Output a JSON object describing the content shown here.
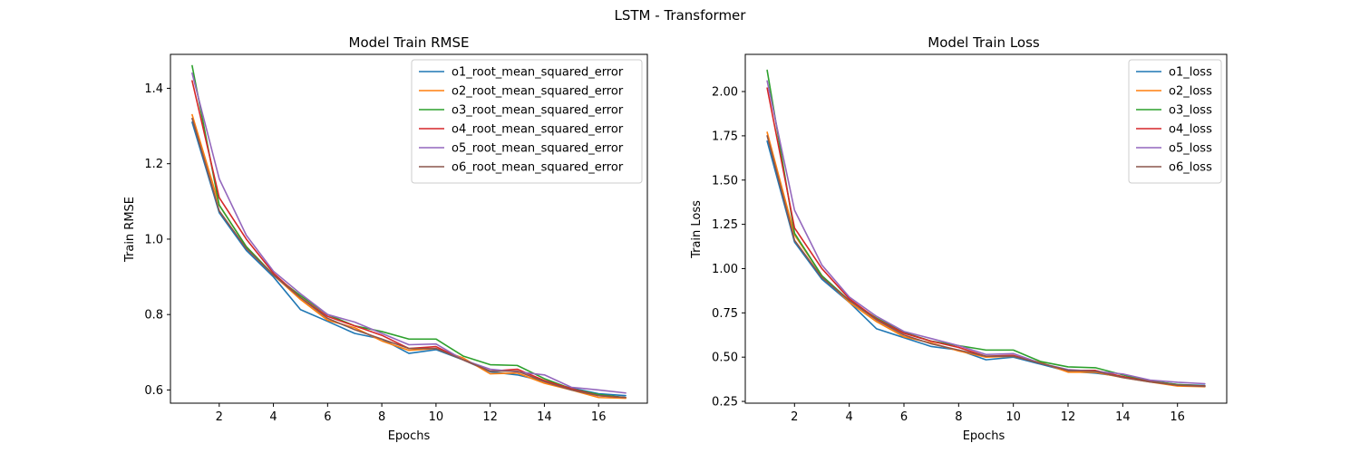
{
  "figure": {
    "suptitle": "LSTM - Transformer"
  },
  "chart_data": [
    {
      "type": "line",
      "title": "Model Train RMSE",
      "xlabel": "Epochs",
      "ylabel": "Train RMSE",
      "xlim": [
        0.2,
        17.8
      ],
      "ylim": [
        0.565,
        1.49
      ],
      "xticks": [
        2,
        4,
        6,
        8,
        10,
        12,
        14,
        16
      ],
      "yticks": [
        0.6,
        0.8,
        1.0,
        1.2,
        1.4
      ],
      "ytick_labels": [
        "0.6",
        "0.8",
        "1.0",
        "1.2",
        "1.4"
      ],
      "grid": false,
      "legend_position": "top-right",
      "x": [
        1,
        2,
        3,
        4,
        5,
        6,
        7,
        8,
        9,
        10,
        11,
        12,
        13,
        14,
        15,
        16,
        17
      ],
      "series": [
        {
          "name": "o1_root_mean_squared_error",
          "color": "#1f77b4",
          "values": [
            1.31,
            1.07,
            0.97,
            0.9,
            0.813,
            0.782,
            0.75,
            0.735,
            0.697,
            0.707,
            0.68,
            0.648,
            0.64,
            0.623,
            0.605,
            0.59,
            0.585
          ]
        },
        {
          "name": "o2_root_mean_squared_error",
          "color": "#ff7f0e",
          "values": [
            1.33,
            1.09,
            0.98,
            0.905,
            0.84,
            0.785,
            0.765,
            0.73,
            0.705,
            0.71,
            0.685,
            0.643,
            0.645,
            0.618,
            0.6,
            0.58,
            0.578
          ]
        },
        {
          "name": "o3_root_mean_squared_error",
          "color": "#2ca02c",
          "values": [
            1.46,
            1.09,
            0.98,
            0.905,
            0.85,
            0.8,
            0.77,
            0.755,
            0.735,
            0.735,
            0.69,
            0.667,
            0.665,
            0.63,
            0.603,
            0.588,
            0.58
          ]
        },
        {
          "name": "o4_root_mean_squared_error",
          "color": "#d62728",
          "values": [
            1.42,
            1.11,
            1.0,
            0.91,
            0.845,
            0.795,
            0.77,
            0.745,
            0.71,
            0.715,
            0.68,
            0.65,
            0.655,
            0.625,
            0.603,
            0.585,
            0.58
          ]
        },
        {
          "name": "o5_root_mean_squared_error",
          "color": "#9467bd",
          "values": [
            1.44,
            1.16,
            1.01,
            0.915,
            0.855,
            0.8,
            0.78,
            0.75,
            0.72,
            0.722,
            0.68,
            0.655,
            0.648,
            0.64,
            0.607,
            0.6,
            0.592
          ]
        },
        {
          "name": "o6_root_mean_squared_error",
          "color": "#8c564b",
          "values": [
            1.32,
            1.075,
            0.975,
            0.905,
            0.845,
            0.79,
            0.76,
            0.735,
            0.71,
            0.71,
            0.68,
            0.65,
            0.65,
            0.622,
            0.6,
            0.585,
            0.58
          ]
        }
      ]
    },
    {
      "type": "line",
      "title": "Model Train Loss",
      "xlabel": "Epochs",
      "ylabel": "Train Loss",
      "xlim": [
        0.2,
        17.8
      ],
      "ylim": [
        0.24,
        2.21
      ],
      "xticks": [
        2,
        4,
        6,
        8,
        10,
        12,
        14,
        16
      ],
      "yticks": [
        0.25,
        0.5,
        0.75,
        1.0,
        1.25,
        1.5,
        1.75,
        2.0
      ],
      "ytick_labels": [
        "0.25",
        "0.50",
        "0.75",
        "1.00",
        "1.25",
        "1.50",
        "1.75",
        "2.00"
      ],
      "grid": false,
      "legend_position": "top-right",
      "x": [
        1,
        2,
        3,
        4,
        5,
        6,
        7,
        8,
        9,
        10,
        11,
        12,
        13,
        14,
        15,
        16,
        17
      ],
      "series": [
        {
          "name": "o1_loss",
          "color": "#1f77b4",
          "values": [
            1.72,
            1.15,
            0.94,
            0.81,
            0.66,
            0.61,
            0.56,
            0.54,
            0.485,
            0.5,
            0.46,
            0.42,
            0.41,
            0.39,
            0.365,
            0.345,
            0.34
          ]
        },
        {
          "name": "o2_loss",
          "color": "#ff7f0e",
          "values": [
            1.77,
            1.19,
            0.96,
            0.81,
            0.7,
            0.615,
            0.58,
            0.535,
            0.5,
            0.505,
            0.47,
            0.415,
            0.415,
            0.385,
            0.36,
            0.337,
            0.333
          ]
        },
        {
          "name": "o3_loss",
          "color": "#2ca02c",
          "values": [
            2.12,
            1.2,
            0.96,
            0.82,
            0.72,
            0.64,
            0.59,
            0.565,
            0.54,
            0.54,
            0.475,
            0.445,
            0.44,
            0.4,
            0.365,
            0.345,
            0.337
          ]
        },
        {
          "name": "o4_loss",
          "color": "#d62728",
          "values": [
            2.02,
            1.23,
            1.0,
            0.83,
            0.715,
            0.635,
            0.59,
            0.555,
            0.505,
            0.51,
            0.465,
            0.425,
            0.425,
            0.39,
            0.362,
            0.342,
            0.337
          ]
        },
        {
          "name": "o5_loss",
          "color": "#9467bd",
          "values": [
            2.06,
            1.33,
            1.02,
            0.84,
            0.73,
            0.645,
            0.605,
            0.565,
            0.515,
            0.52,
            0.465,
            0.43,
            0.42,
            0.405,
            0.37,
            0.358,
            0.35
          ]
        },
        {
          "name": "o6_loss",
          "color": "#8c564b",
          "values": [
            1.75,
            1.16,
            0.95,
            0.82,
            0.71,
            0.625,
            0.575,
            0.54,
            0.505,
            0.505,
            0.465,
            0.425,
            0.42,
            0.385,
            0.36,
            0.342,
            0.335
          ]
        }
      ]
    }
  ]
}
